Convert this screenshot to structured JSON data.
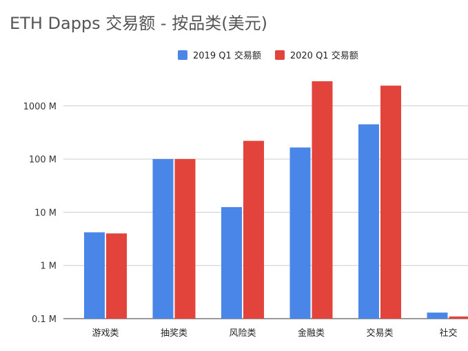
{
  "chart_data": {
    "type": "bar",
    "title": "ETH Dapps 交易额 - 按品类(美元)",
    "yscale": "log",
    "ylim": [
      0.1,
      3000
    ],
    "yticks": [
      0.1,
      1,
      10,
      100,
      1000
    ],
    "ytick_labels": [
      "0.1 M",
      "1 M",
      "10 M",
      "100 M",
      "1000 M"
    ],
    "grid": true,
    "legend_position": "top",
    "categories": [
      "游戏类",
      "抽奖类",
      "风险类",
      "金融类",
      "交易类",
      "社交"
    ],
    "series": [
      {
        "name": "2019 Q1 交易额",
        "color": "#4a86e8",
        "values": [
          4.2,
          100,
          12.5,
          165,
          450,
          0.13
        ]
      },
      {
        "name": "2020 Q1  交易额",
        "color": "#e2443b",
        "values": [
          4.0,
          100,
          220,
          2900,
          2400,
          0.11
        ]
      }
    ]
  }
}
